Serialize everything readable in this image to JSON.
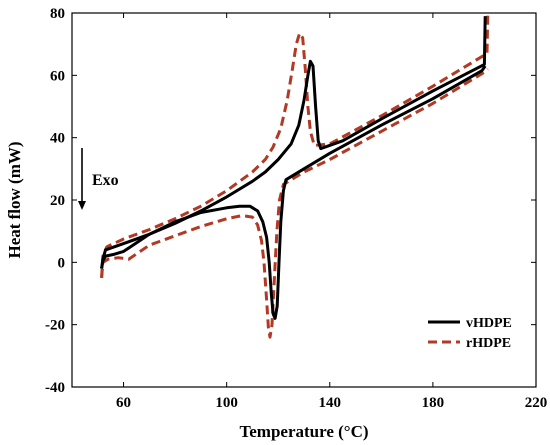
{
  "chart_data": {
    "type": "line",
    "xlabel": "Temperature (°C)",
    "ylabel": "Heat flow (mW)",
    "xlim": [
      40,
      220
    ],
    "ylim": [
      -40,
      80
    ],
    "xticks": [
      60,
      100,
      140,
      180,
      220
    ],
    "yticks": [
      -40,
      -20,
      0,
      20,
      40,
      60,
      80
    ],
    "grid": false,
    "legend_position": "bottom-right",
    "annotation": {
      "text": "Exo",
      "arrow": "down"
    },
    "series": [
      {
        "name": "vHDPE",
        "color": "#000000",
        "style": "solid",
        "segments": [
          [
            [
              51.5,
              -2
            ],
            [
              52,
              1
            ],
            [
              53,
              4
            ],
            [
              60,
              6
            ],
            [
              70,
              9
            ],
            [
              80,
              12.5
            ],
            [
              90,
              16.5
            ],
            [
              100,
              21
            ],
            [
              110,
              26
            ],
            [
              115,
              29
            ],
            [
              120,
              33
            ],
            [
              125,
              38
            ],
            [
              128,
              44
            ],
            [
              130,
              52
            ],
            [
              131.5,
              60
            ],
            [
              132.5,
              64.5
            ],
            [
              133.5,
              63
            ],
            [
              134.5,
              50
            ],
            [
              135.5,
              39
            ],
            [
              136.5,
              36.5
            ],
            [
              145,
              39
            ],
            [
              160,
              46
            ],
            [
              180,
              55
            ],
            [
              200,
              63.5
            ],
            [
              200.3,
              79
            ]
          ],
          [
            [
              51.5,
              -2
            ],
            [
              52,
              0.5
            ],
            [
              53,
              2
            ],
            [
              56,
              2.5
            ],
            [
              60,
              3.5
            ],
            [
              70,
              9
            ],
            [
              80,
              13
            ],
            [
              90,
              16
            ],
            [
              100,
              17.5
            ],
            [
              105,
              18
            ],
            [
              109,
              18
            ],
            [
              112,
              16.5
            ],
            [
              114,
              13
            ],
            [
              115.5,
              8
            ],
            [
              116.5,
              0
            ],
            [
              117.3,
              -10
            ],
            [
              118,
              -16.5
            ],
            [
              118.8,
              -18
            ],
            [
              119.6,
              -14
            ],
            [
              120.3,
              0
            ],
            [
              121,
              13
            ],
            [
              122,
              23
            ],
            [
              123,
              26.5
            ],
            [
              130,
              30
            ],
            [
              140,
              35
            ],
            [
              160,
              44
            ],
            [
              180,
              52.5
            ],
            [
              199,
              61.5
            ],
            [
              200.3,
              63
            ]
          ]
        ]
      },
      {
        "name": "rHDPE",
        "color": "#b23a24",
        "style": "dashed",
        "segments": [
          [
            [
              51.5,
              -5
            ],
            [
              52,
              2
            ],
            [
              53.5,
              5
            ],
            [
              60,
              7.5
            ],
            [
              70,
              10.5
            ],
            [
              80,
              14
            ],
            [
              90,
              18
            ],
            [
              100,
              23
            ],
            [
              110,
              29
            ],
            [
              115,
              33
            ],
            [
              118,
              37
            ],
            [
              121,
              43
            ],
            [
              123.5,
              52
            ],
            [
              125.5,
              62
            ],
            [
              127,
              70
            ],
            [
              128.3,
              73.5
            ],
            [
              129.5,
              72
            ],
            [
              130.5,
              62
            ],
            [
              131.5,
              50
            ],
            [
              132.5,
              42
            ],
            [
              134,
              37.5
            ],
            [
              140,
              38
            ],
            [
              160,
              47
            ],
            [
              180,
              56.5
            ],
            [
              201,
              67
            ],
            [
              201.3,
              80
            ]
          ],
          [
            [
              51.5,
              -5
            ],
            [
              52,
              0
            ],
            [
              54,
              1
            ],
            [
              58,
              1.5
            ],
            [
              62,
              1
            ],
            [
              70,
              5.5
            ],
            [
              80,
              8.5
            ],
            [
              90,
              11.5
            ],
            [
              100,
              14
            ],
            [
              106,
              15
            ],
            [
              110,
              14.5
            ],
            [
              112,
              12
            ],
            [
              113.5,
              7
            ],
            [
              114.5,
              0
            ],
            [
              115.5,
              -12
            ],
            [
              116.2,
              -21
            ],
            [
              116.8,
              -24
            ],
            [
              117.6,
              -20
            ],
            [
              118.5,
              -5
            ],
            [
              119.5,
              10
            ],
            [
              120.5,
              20
            ],
            [
              122,
              25
            ],
            [
              130,
              29
            ],
            [
              140,
              33
            ],
            [
              160,
              42
            ],
            [
              180,
              51
            ],
            [
              200,
              61
            ],
            [
              201.3,
              62
            ]
          ]
        ]
      }
    ]
  }
}
